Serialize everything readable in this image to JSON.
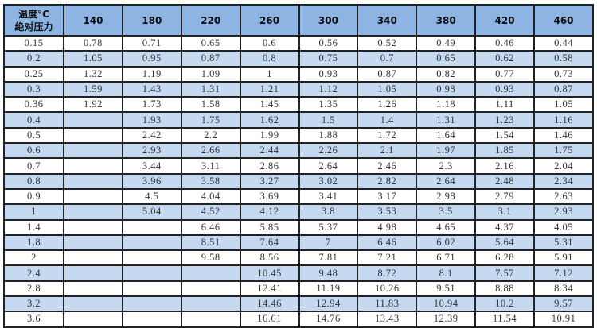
{
  "table": {
    "corner_line1": "温度°C",
    "corner_line2": "绝对压力",
    "header_bg": "#8db4e2",
    "alt_row_bg": "#c5d9f1",
    "columns": [
      "140",
      "180",
      "220",
      "260",
      "300",
      "340",
      "380",
      "420",
      "460"
    ],
    "rows": [
      [
        "0.15",
        "0.78",
        "0.71",
        "0.65",
        "0.6",
        "0.56",
        "0.52",
        "0.49",
        "0.46",
        "0.44"
      ],
      [
        "0.2",
        "1.05",
        "0.95",
        "0.87",
        "0.8",
        "0.75",
        "0.7",
        "0.65",
        "0.62",
        "0.58"
      ],
      [
        "0.25",
        "1.32",
        "1.19",
        "1.09",
        "1",
        "0.93",
        "0.87",
        "0.82",
        "0.77",
        "0.73"
      ],
      [
        "0.3",
        "1.59",
        "1.43",
        "1.31",
        "1.21",
        "1.12",
        "1.05",
        "0.98",
        "0.93",
        "0.87"
      ],
      [
        "0.36",
        "1.92",
        "1.73",
        "1.58",
        "1.45",
        "1.35",
        "1.26",
        "1.18",
        "1.11",
        "1.05"
      ],
      [
        "0.4",
        "",
        "1.93",
        "1.75",
        "1.62",
        "1.5",
        "1.4",
        "1.31",
        "1.23",
        "1.16"
      ],
      [
        "0.5",
        "",
        "2.42",
        "2.2",
        "1.99",
        "1.88",
        "1.72",
        "1.64",
        "1.54",
        "1.46"
      ],
      [
        "0.6",
        "",
        "2.93",
        "2.66",
        "2.44",
        "2.26",
        "2.1",
        "1.97",
        "1.85",
        "1.75"
      ],
      [
        "0.7",
        "",
        "3.44",
        "3.11",
        "2.86",
        "2.64",
        "2.46",
        "2.3",
        "2.16",
        "2.04"
      ],
      [
        "0.8",
        "",
        "3.96",
        "3.58",
        "3.27",
        "3.02",
        "2.82",
        "2.64",
        "2.48",
        "2.34"
      ],
      [
        "0.9",
        "",
        "4.5",
        "4.04",
        "3.69",
        "3.41",
        "3.17",
        "2.98",
        "2.79",
        "2.63"
      ],
      [
        "1",
        "",
        "5.04",
        "4.52",
        "4.12",
        "3.8",
        "3.53",
        "3.5",
        "3.1",
        "2.93"
      ],
      [
        "1.4",
        "",
        "",
        "6.46",
        "5.85",
        "5.37",
        "4.98",
        "4.65",
        "4.37",
        "4.05"
      ],
      [
        "1.8",
        "",
        "",
        "8.51",
        "7.64",
        "7",
        "6.46",
        "6.02",
        "5.64",
        "5.31"
      ],
      [
        "2",
        "",
        "",
        "9.58",
        "8.56",
        "7.81",
        "7.21",
        "6.71",
        "6.28",
        "5.91"
      ],
      [
        "2.4",
        "",
        "",
        "",
        "10.45",
        "9.48",
        "8.72",
        "8.1",
        "7.57",
        "7.12"
      ],
      [
        "2.8",
        "",
        "",
        "",
        "12.41",
        "11.19",
        "10.26",
        "9.51",
        "8.88",
        "8.34"
      ],
      [
        "3.2",
        "",
        "",
        "",
        "14.46",
        "12.94",
        "11.83",
        "10.94",
        "10.2",
        "9.57"
      ],
      [
        "3.6",
        "",
        "",
        "",
        "16.61",
        "14.76",
        "13.43",
        "12.39",
        "11.54",
        "10.91"
      ]
    ]
  }
}
